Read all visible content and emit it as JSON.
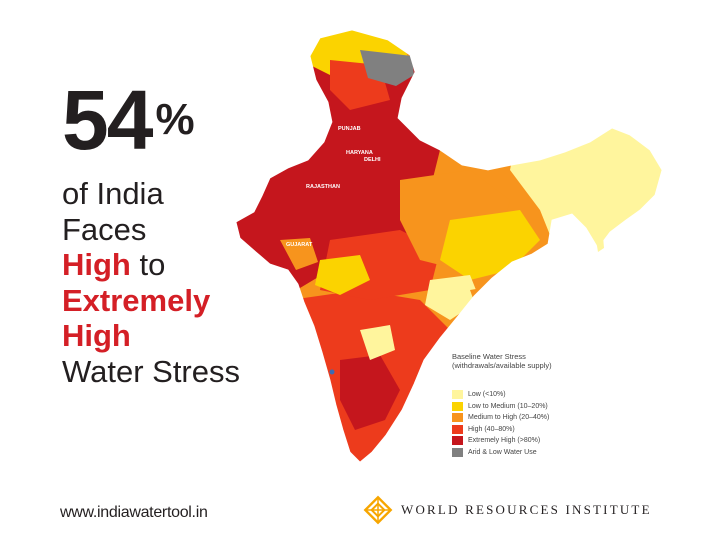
{
  "headline": {
    "number": "54",
    "percent_sign": "%",
    "line1": "of India",
    "line2": "Faces",
    "line3_red": "High",
    "line3_rest": " to",
    "line4": "Extremely",
    "line5": "High",
    "line6": "Water Stress"
  },
  "footer": {
    "url": "www.indiawatertool.in",
    "org_name": "WORLD RESOURCES INSTITUTE"
  },
  "map": {
    "labels": {
      "punjab": "PUNJAB",
      "haryana": "HARYANA",
      "delhi": "DELHI",
      "rajasthan": "RAJASTHAN",
      "gujarat": "GUJARAT"
    }
  },
  "legend": {
    "title_line1": "Baseline Water Stress",
    "title_line2": "(withdrawals/available supply)",
    "items": [
      {
        "label": "Low (<10%)",
        "color": "#fff59d"
      },
      {
        "label": "Low to Medium (10–20%)",
        "color": "#fbd300"
      },
      {
        "label": "Medium to High (20–40%)",
        "color": "#f7941d"
      },
      {
        "label": "High (40–80%)",
        "color": "#ed3b1c"
      },
      {
        "label": "Extremely High (>80%)",
        "color": "#c5161d"
      },
      {
        "label": "Arid & Low Water Use",
        "color": "#808080"
      }
    ]
  },
  "colors": {
    "text": "#231f20",
    "accent_red": "#d41f26",
    "low": "#fff59d",
    "low_medium": "#fbd300",
    "medium_high": "#f7941d",
    "high": "#ed3b1c",
    "extremely_high": "#c5161d",
    "arid": "#808080"
  }
}
